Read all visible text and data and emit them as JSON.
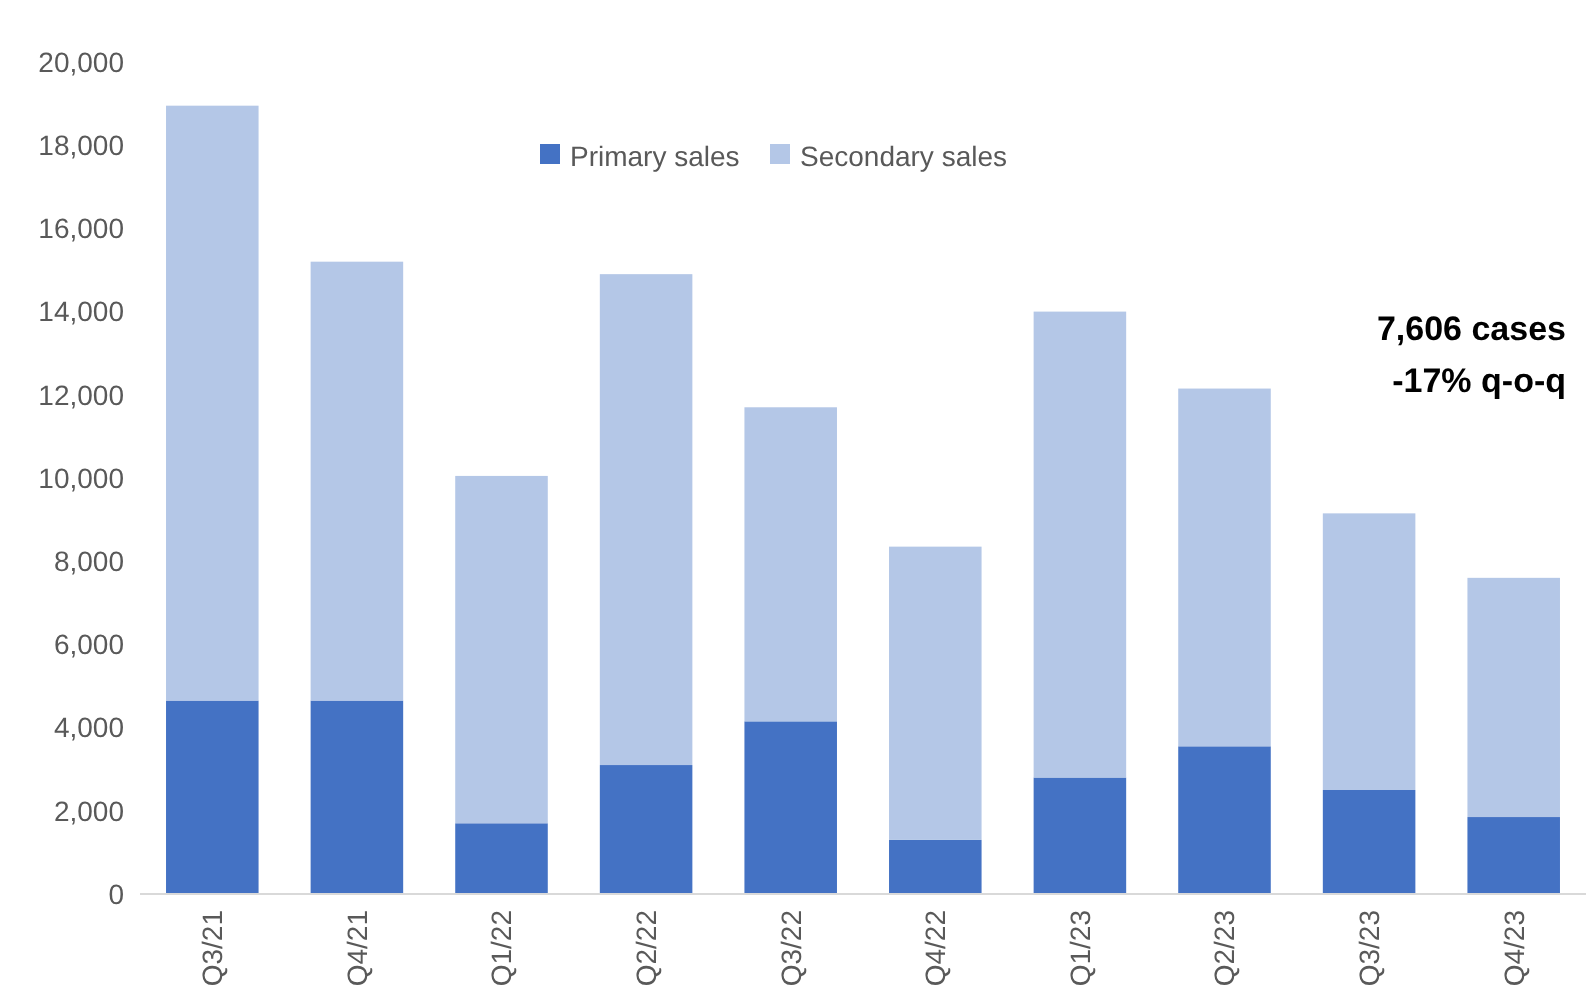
{
  "chart_data": {
    "type": "bar",
    "stacked": true,
    "categories": [
      "Q3/21",
      "Q4/21",
      "Q1/22",
      "Q2/22",
      "Q3/22",
      "Q4/22",
      "Q1/23",
      "Q2/23",
      "Q3/23",
      "Q4/23"
    ],
    "series": [
      {
        "name": "Primary sales",
        "color": "#4472c4",
        "values": [
          4650,
          4650,
          1700,
          3100,
          4150,
          1300,
          2800,
          3550,
          2500,
          1850
        ]
      },
      {
        "name": "Secondary sales",
        "color": "#b4c7e7",
        "values": [
          14300,
          10550,
          8350,
          11800,
          7550,
          7050,
          11200,
          8600,
          6650,
          5750
        ]
      }
    ],
    "ylim": [
      0,
      20000
    ],
    "yticks": [
      {
        "value": 0,
        "label": "0"
      },
      {
        "value": 2000,
        "label": "2,000"
      },
      {
        "value": 4000,
        "label": "4,000"
      },
      {
        "value": 6000,
        "label": "6,000"
      },
      {
        "value": 8000,
        "label": "8,000"
      },
      {
        "value": 10000,
        "label": "10,000"
      },
      {
        "value": 12000,
        "label": "12,000"
      },
      {
        "value": 14000,
        "label": "14,000"
      },
      {
        "value": 16000,
        "label": "16,000"
      },
      {
        "value": 18000,
        "label": "18,000"
      },
      {
        "value": 20000,
        "label": "20,000"
      }
    ],
    "legend": "top",
    "annotations": [
      "7,606 cases",
      "-17% q-o-q"
    ]
  }
}
